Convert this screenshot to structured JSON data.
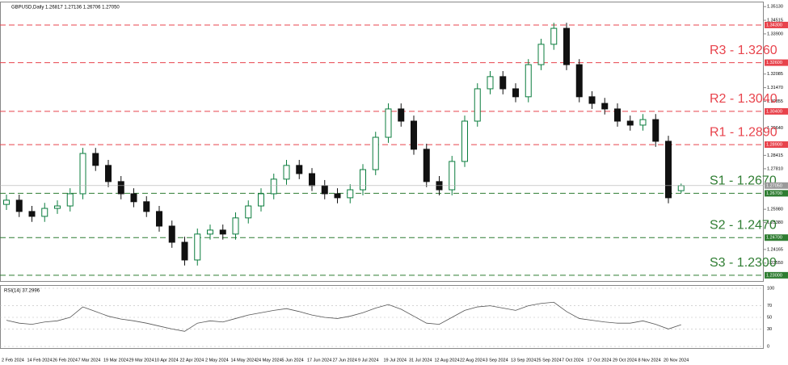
{
  "chart_data": [
    {
      "type": "candlestick",
      "title": "GBPUSD,Daily  1.26817 1.27136 1.26706 1.27050",
      "categories": [
        "2 Feb 2024",
        null,
        "14 Feb 2024",
        null,
        "26 Feb 2024",
        null,
        "7 Mar 2024",
        null,
        "19 Mar 2024",
        null,
        "29 Mar 2024",
        null,
        "10 Apr 2024",
        null,
        "22 Apr 2024",
        null,
        "2 May 2024",
        null,
        "14 May 2024",
        null,
        "24 May 2024",
        null,
        "5 Jun 2024",
        null,
        "17 Jun 2024",
        null,
        "27 Jun 2024",
        null,
        "9 Jul 2024",
        null,
        "19 Jul 2024",
        null,
        "31 Jul 2024",
        null,
        "12 Aug 2024",
        null,
        "22 Aug 2024",
        null,
        "3 Sep 2024",
        null,
        "13 Sep 2024",
        null,
        "25 Sep 2024",
        null,
        "7 Oct 2024",
        null,
        "17 Oct 2024",
        null,
        "29 Oct 2024",
        null,
        "8 Nov 2024",
        null,
        "20 Nov 2024",
        null
      ],
      "open": [
        1.262,
        1.2639,
        1.2588,
        1.2566,
        1.2602,
        1.2613,
        1.2668,
        1.285,
        1.2796,
        1.2723,
        1.2668,
        1.2632,
        1.2588,
        1.2522,
        1.2449,
        1.2369,
        1.2486,
        1.2504,
        1.2486,
        1.2559,
        1.2613,
        1.2668,
        1.2734,
        1.2796,
        1.2759,
        1.2705,
        1.2668,
        1.265,
        1.2686,
        1.2777,
        1.2923,
        1.3051,
        1.2996,
        1.2869,
        1.2723,
        1.2686,
        1.2814,
        1.2996,
        1.3142,
        1.3197,
        1.3142,
        1.3106,
        1.3251,
        1.3343,
        1.3415,
        1.3251,
        1.3106,
        1.3076,
        1.3051,
        1.2996,
        1.2978,
        1.3003,
        1.2905,
        1.2682
      ],
      "high": [
        1.2664,
        1.2664,
        1.2613,
        1.2627,
        1.2638,
        1.2693,
        1.2875,
        1.2875,
        1.2821,
        1.2748,
        1.2693,
        1.2657,
        1.2613,
        1.2547,
        1.2474,
        1.2511,
        1.2529,
        1.2529,
        1.2584,
        1.2638,
        1.2693,
        1.2759,
        1.2821,
        1.2821,
        1.2784,
        1.273,
        1.2693,
        1.2711,
        1.2802,
        1.2948,
        1.3076,
        1.3076,
        1.3021,
        1.2894,
        1.2748,
        1.2839,
        1.3021,
        1.3167,
        1.3222,
        1.3222,
        1.3167,
        1.3276,
        1.3368,
        1.344,
        1.344,
        1.3276,
        1.3131,
        1.3101,
        1.3076,
        1.3021,
        1.3028,
        1.3028,
        1.293,
        1.2714
      ],
      "low": [
        1.2595,
        1.2563,
        1.2541,
        1.2541,
        1.2577,
        1.2588,
        1.2643,
        1.2771,
        1.2698,
        1.2643,
        1.2607,
        1.2563,
        1.2497,
        1.2424,
        1.2344,
        1.2344,
        1.2461,
        1.2461,
        1.2461,
        1.2534,
        1.2588,
        1.2643,
        1.2709,
        1.2734,
        1.268,
        1.2643,
        1.2625,
        1.2625,
        1.2661,
        1.2752,
        1.2898,
        1.2971,
        1.2844,
        1.2698,
        1.2661,
        1.2661,
        1.2789,
        1.2971,
        1.3117,
        1.3117,
        1.3081,
        1.3081,
        1.3226,
        1.3318,
        1.3226,
        1.3081,
        1.3051,
        1.3026,
        1.2971,
        1.2953,
        1.2953,
        1.288,
        1.2625,
        1.2671
      ],
      "close": [
        1.2639,
        1.2588,
        1.2566,
        1.2602,
        1.2613,
        1.2668,
        1.285,
        1.2796,
        1.2723,
        1.2668,
        1.2632,
        1.2588,
        1.2522,
        1.2449,
        1.2369,
        1.2486,
        1.2504,
        1.2486,
        1.2559,
        1.2613,
        1.2668,
        1.2734,
        1.2796,
        1.2759,
        1.2705,
        1.2668,
        1.265,
        1.2686,
        1.2777,
        1.2923,
        1.3051,
        1.2996,
        1.2869,
        1.2723,
        1.2686,
        1.2814,
        1.2996,
        1.3142,
        1.3197,
        1.3142,
        1.3106,
        1.3251,
        1.3343,
        1.3415,
        1.3251,
        1.3106,
        1.3076,
        1.3051,
        1.2996,
        1.2978,
        1.3003,
        1.2905,
        1.265,
        1.2705
      ],
      "up_color": "#0b7d3e",
      "down_color": "#111111",
      "ylim": [
        1.2274,
        1.3532
      ],
      "yticks": [
        {
          "value": 1.3513,
          "label": "1.35130"
        },
        {
          "value": 1.34515,
          "label": "1.34515"
        },
        {
          "value": 1.339,
          "label": "1.33900"
        },
        {
          "value": 1.32085,
          "label": "1.32085"
        },
        {
          "value": 1.3147,
          "label": "1.31470"
        },
        {
          "value": 1.30855,
          "label": "1.30855"
        },
        {
          "value": 1.2964,
          "label": "1.29640"
        },
        {
          "value": 1.28415,
          "label": "1.28415"
        },
        {
          "value": 1.2781,
          "label": "1.27810"
        },
        {
          "value": 1.2598,
          "label": "1.25980"
        },
        {
          "value": 1.2538,
          "label": "1.25380"
        },
        {
          "value": 1.24165,
          "label": "1.24165"
        },
        {
          "value": 1.2355,
          "label": "1.23550"
        }
      ],
      "levels": [
        {
          "value": 1.343,
          "axis_label": "1.34300",
          "color": "#e8434c"
        },
        {
          "value": 1.326,
          "label": "R3 - 1.3260",
          "axis_label": "1.32600",
          "color": "#e8434c"
        },
        {
          "value": 1.304,
          "label": "R2 - 1.3040",
          "axis_label": "1.30400",
          "color": "#e8434c"
        },
        {
          "value": 1.289,
          "label": "R1 - 1.2890",
          "axis_label": "1.28900",
          "color": "#e8434c"
        },
        {
          "value": 1.267,
          "label": "S1 - 1.2670",
          "axis_label": "1.26700",
          "color": "#2f7d32"
        },
        {
          "value": 1.247,
          "label": "S2 - 1.2470",
          "axis_label": "1.24700",
          "color": "#2f7d32"
        },
        {
          "value": 1.23,
          "label": "S3 - 1.2300",
          "axis_label": "1.23000",
          "color": "#2f7d32"
        }
      ],
      "last_price": {
        "value": 1.2705,
        "label": "1.27050"
      },
      "grid": false
    },
    {
      "type": "line",
      "title": "RSI(14) 37.2996",
      "values": [
        45,
        40,
        38,
        42,
        44,
        50,
        68,
        60,
        52,
        47,
        44,
        40,
        35,
        30,
        26,
        40,
        44,
        42,
        48,
        54,
        58,
        62,
        65,
        60,
        54,
        50,
        48,
        52,
        58,
        66,
        72,
        64,
        52,
        40,
        38,
        50,
        62,
        68,
        70,
        66,
        62,
        70,
        74,
        76,
        60,
        48,
        45,
        42,
        40,
        40,
        44,
        38,
        30,
        37.2996
      ],
      "color": "#555555",
      "ylim": [
        0,
        100
      ],
      "yticks": [
        100,
        70,
        50,
        30,
        0
      ]
    }
  ]
}
